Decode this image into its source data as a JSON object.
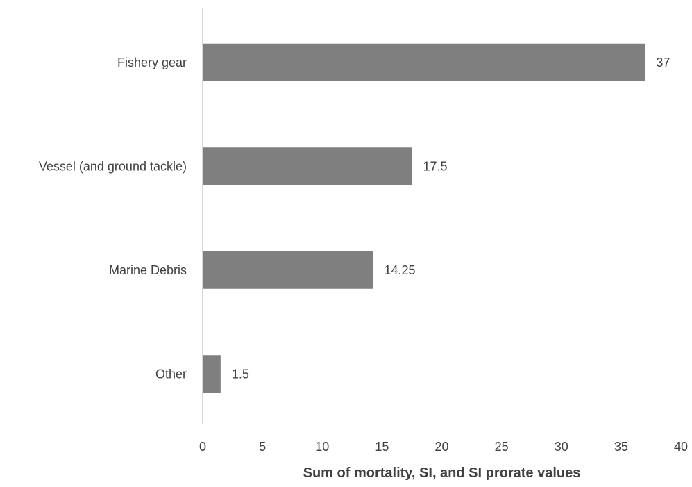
{
  "chart_data": {
    "type": "bar",
    "orientation": "horizontal",
    "categories": [
      "Fishery gear",
      "Vessel (and ground tackle)",
      "Marine Debris",
      "Other"
    ],
    "values": [
      37,
      17.5,
      14.25,
      1.5
    ],
    "data_labels": [
      "37",
      "17.5",
      "14.25",
      "1.5"
    ],
    "title": "",
    "xlabel": "Sum of mortality, SI, and SI prorate values",
    "ylabel": "",
    "xlim": [
      0,
      40
    ],
    "xticks": [
      0,
      5,
      10,
      15,
      20,
      25,
      30,
      35,
      40
    ],
    "grid": false,
    "legend": "none",
    "bar_color": "#7f7f7f",
    "axis_color": "#bfbfbf",
    "text_color": "#404040"
  }
}
